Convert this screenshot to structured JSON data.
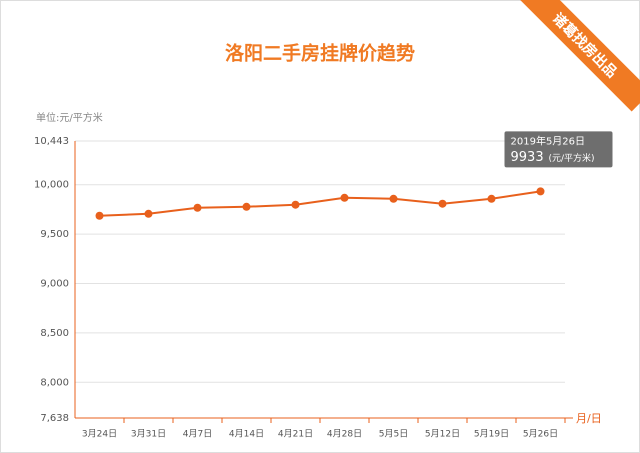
{
  "brand": "诸葛找房出品",
  "chart_data": {
    "type": "line",
    "title": "洛阳二手房挂牌价趋势",
    "y_label": "单位:元/平方米",
    "x_label": "月/日",
    "categories": [
      "3月24日",
      "3月31日",
      "4月7日",
      "4月14日",
      "4月21日",
      "4月28日",
      "5月5日",
      "5月12日",
      "5月19日",
      "5月26日"
    ],
    "series": [
      {
        "color": "#e8601c",
        "values": [
          9686,
          9706,
          9767,
          9777,
          9798,
          9868,
          9858,
          9808,
          9858,
          9933
        ]
      }
    ],
    "ylim": [
      7638,
      10443
    ],
    "yticks": [
      {
        "value": 7638,
        "label": "7,638"
      },
      {
        "value": 8000,
        "label": "8,000"
      },
      {
        "value": 8500,
        "label": "8,500"
      },
      {
        "value": 9000,
        "label": "9,000"
      },
      {
        "value": 9500,
        "label": "9,500"
      },
      {
        "value": 10000,
        "label": "10,000"
      },
      {
        "value": 10443,
        "label": "10,443"
      }
    ],
    "grid": true,
    "tooltip": {
      "date": "2019年5月26日",
      "unit": "(元/平方米)"
    }
  }
}
